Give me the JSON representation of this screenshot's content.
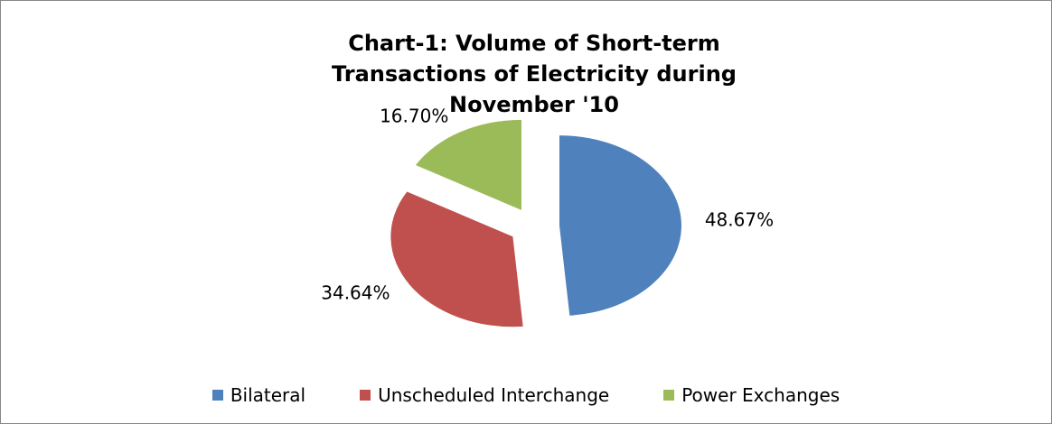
{
  "chart_data": {
    "type": "pie",
    "title": "Chart-1: Volume of Short-term Transactions of Electricity during November '10",
    "categories": [
      "Bilateral",
      "Unscheduled Interchange",
      "Power Exchanges"
    ],
    "values": [
      48.67,
      34.64,
      16.7
    ],
    "value_labels": [
      "48.67%",
      "34.64%",
      "16.70%"
    ],
    "colors": [
      "#4f81bd",
      "#c0504d",
      "#9bbb59"
    ],
    "legend": "bottom"
  }
}
